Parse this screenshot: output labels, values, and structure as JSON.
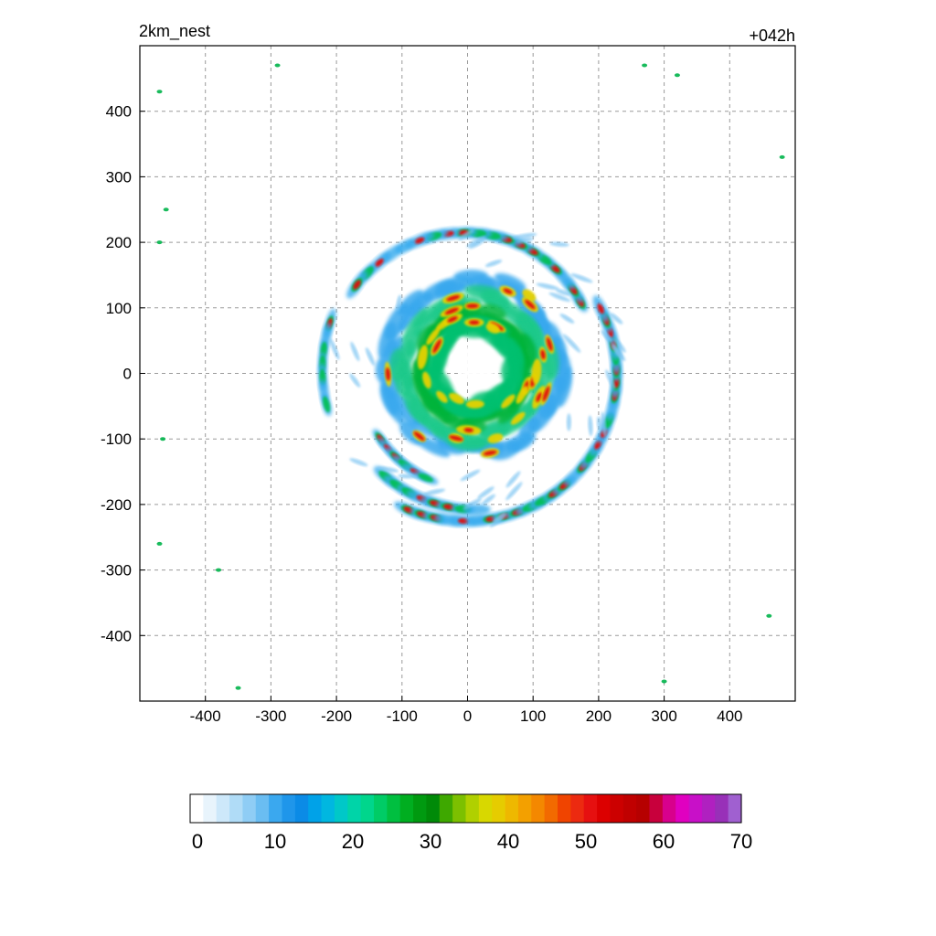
{
  "chart_data": {
    "type": "heatmap",
    "title_left": "2km_nest",
    "title_right": "+042h",
    "xlabel": "",
    "ylabel": "",
    "xlim": [
      -500,
      500
    ],
    "ylim": [
      -500,
      500
    ],
    "x_ticks": [
      -400,
      -300,
      -200,
      -100,
      0,
      100,
      200,
      300,
      400
    ],
    "y_ticks": [
      400,
      300,
      200,
      100,
      0,
      -100,
      -200,
      -300,
      -400
    ],
    "grid": true,
    "colorbar": {
      "min": 0,
      "max": 70,
      "ticks": [
        0,
        10,
        20,
        30,
        40,
        50,
        60,
        70
      ],
      "colors": [
        "#ffffff",
        "#e8f4fc",
        "#cde8fa",
        "#b0dcf7",
        "#8fcdf5",
        "#6abdf2",
        "#3aa8ef",
        "#1f96ea",
        "#0b8be6",
        "#00a2e8",
        "#00b7e0",
        "#00c8c8",
        "#00d4a8",
        "#00d68c",
        "#00cc66",
        "#00bf40",
        "#00ae20",
        "#009a10",
        "#008a08",
        "#3ea800",
        "#7cc000",
        "#b0d000",
        "#d8d800",
        "#e6cc00",
        "#eeb800",
        "#f3a000",
        "#f48800",
        "#f26a00",
        "#f04400",
        "#ec2a10",
        "#e61010",
        "#dc0000",
        "#cc0000",
        "#c00000",
        "#b60000",
        "#c8003c",
        "#d8008c",
        "#e000c0",
        "#c810c8",
        "#b020c0",
        "#9830b8",
        "#a060d0"
      ]
    },
    "series": []
  }
}
